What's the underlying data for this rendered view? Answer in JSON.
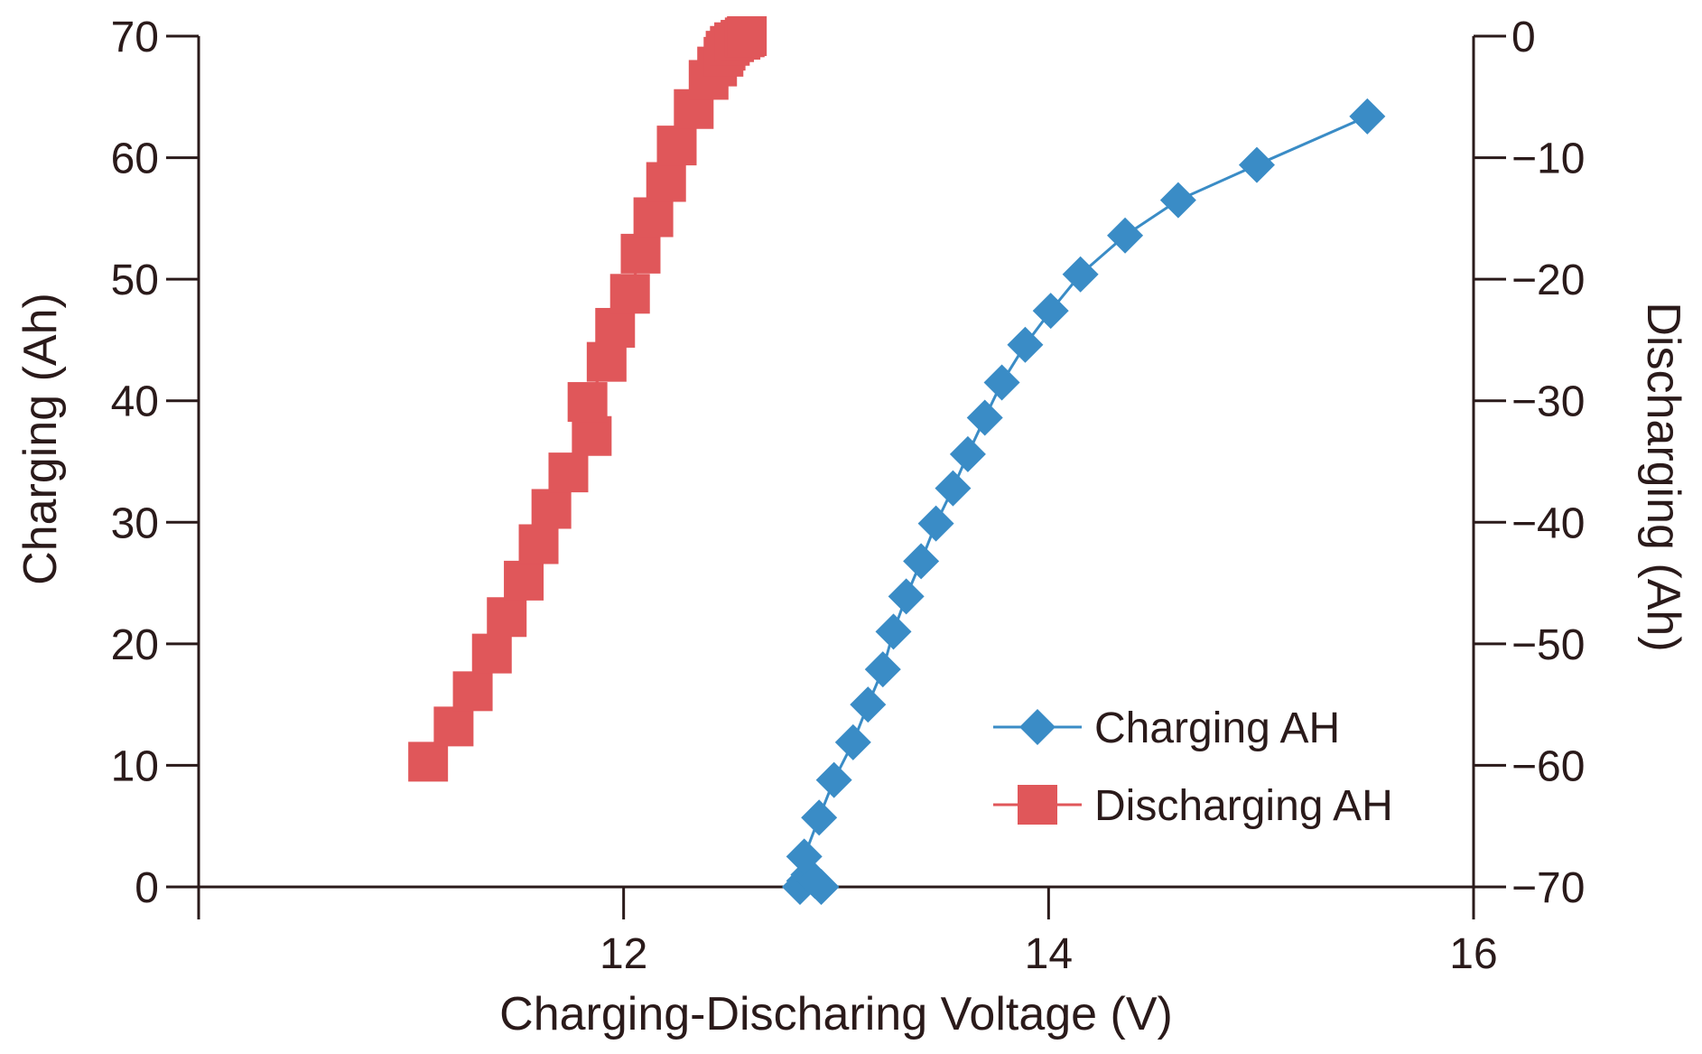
{
  "chart_data": {
    "type": "scatter",
    "title": "",
    "xlabel": "Charging-Discharing Voltage (V)",
    "ylabel": "Charging (Ah)",
    "y2label": "Discharging (Ah)",
    "xlim": [
      10,
      16
    ],
    "ylim": [
      0,
      70
    ],
    "y2lim": [
      -70,
      0
    ],
    "xticks": [
      12,
      14,
      16
    ],
    "xtick_labels": [
      "12",
      "14",
      "16"
    ],
    "yticks": [
      0,
      10,
      20,
      30,
      40,
      50,
      60,
      70
    ],
    "ytick_labels": [
      "0",
      "10",
      "20",
      "30",
      "40",
      "50",
      "60",
      "70"
    ],
    "y2ticks": [
      0,
      -10,
      -20,
      -30,
      -40,
      -50,
      -60,
      -70
    ],
    "y2tick_labels": [
      "0",
      "−10",
      "−20",
      "−30",
      "−40",
      "−50",
      "−60",
      "−70"
    ],
    "grid": false,
    "legend_position": "bottom-right",
    "series": [
      {
        "name": "Charging AH",
        "color": "#3a8cc6",
        "marker": "diamond",
        "line": true,
        "axis": "left",
        "x": [
          12.83,
          12.85,
          12.87,
          12.9,
          12.93,
          12.85,
          12.92,
          12.99,
          13.08,
          13.15,
          13.22,
          13.27,
          13.33,
          13.4,
          13.47,
          13.55,
          13.62,
          13.7,
          13.78,
          13.89,
          14.01,
          14.15,
          14.36,
          14.61,
          14.98,
          15.5
        ],
        "y": [
          0,
          0.5,
          1,
          0.5,
          0,
          2.5,
          5.7,
          8.8,
          11.9,
          15.0,
          17.9,
          21.0,
          23.9,
          26.8,
          29.9,
          32.8,
          35.6,
          38.6,
          41.5,
          44.6,
          47.4,
          50.4,
          53.6,
          56.5,
          59.4,
          63.4
        ]
      },
      {
        "name": "Discharging AH",
        "color": "#e0575a",
        "marker": "square",
        "line": true,
        "axis": "right",
        "x": [
          11.08,
          11.2,
          11.29,
          11.38,
          11.45,
          11.53,
          11.6,
          11.66,
          11.74,
          11.85,
          11.83,
          11.92,
          11.96,
          12.03,
          12.08,
          12.14,
          12.2,
          12.25,
          12.33,
          12.4,
          12.44,
          12.47,
          12.48,
          12.5,
          12.52,
          12.55,
          12.57,
          12.58
        ],
        "y": [
          -59.7,
          -56.8,
          -53.9,
          -50.8,
          -47.8,
          -44.8,
          -41.8,
          -38.9,
          -35.9,
          -32.9,
          -30.1,
          -26.8,
          -24.0,
          -21.2,
          -17.9,
          -14.9,
          -12.0,
          -9.0,
          -6.0,
          -3.6,
          -2.5,
          -1.7,
          -1.2,
          -0.8,
          -0.5,
          -0.3,
          -0.1,
          0
        ]
      }
    ]
  }
}
